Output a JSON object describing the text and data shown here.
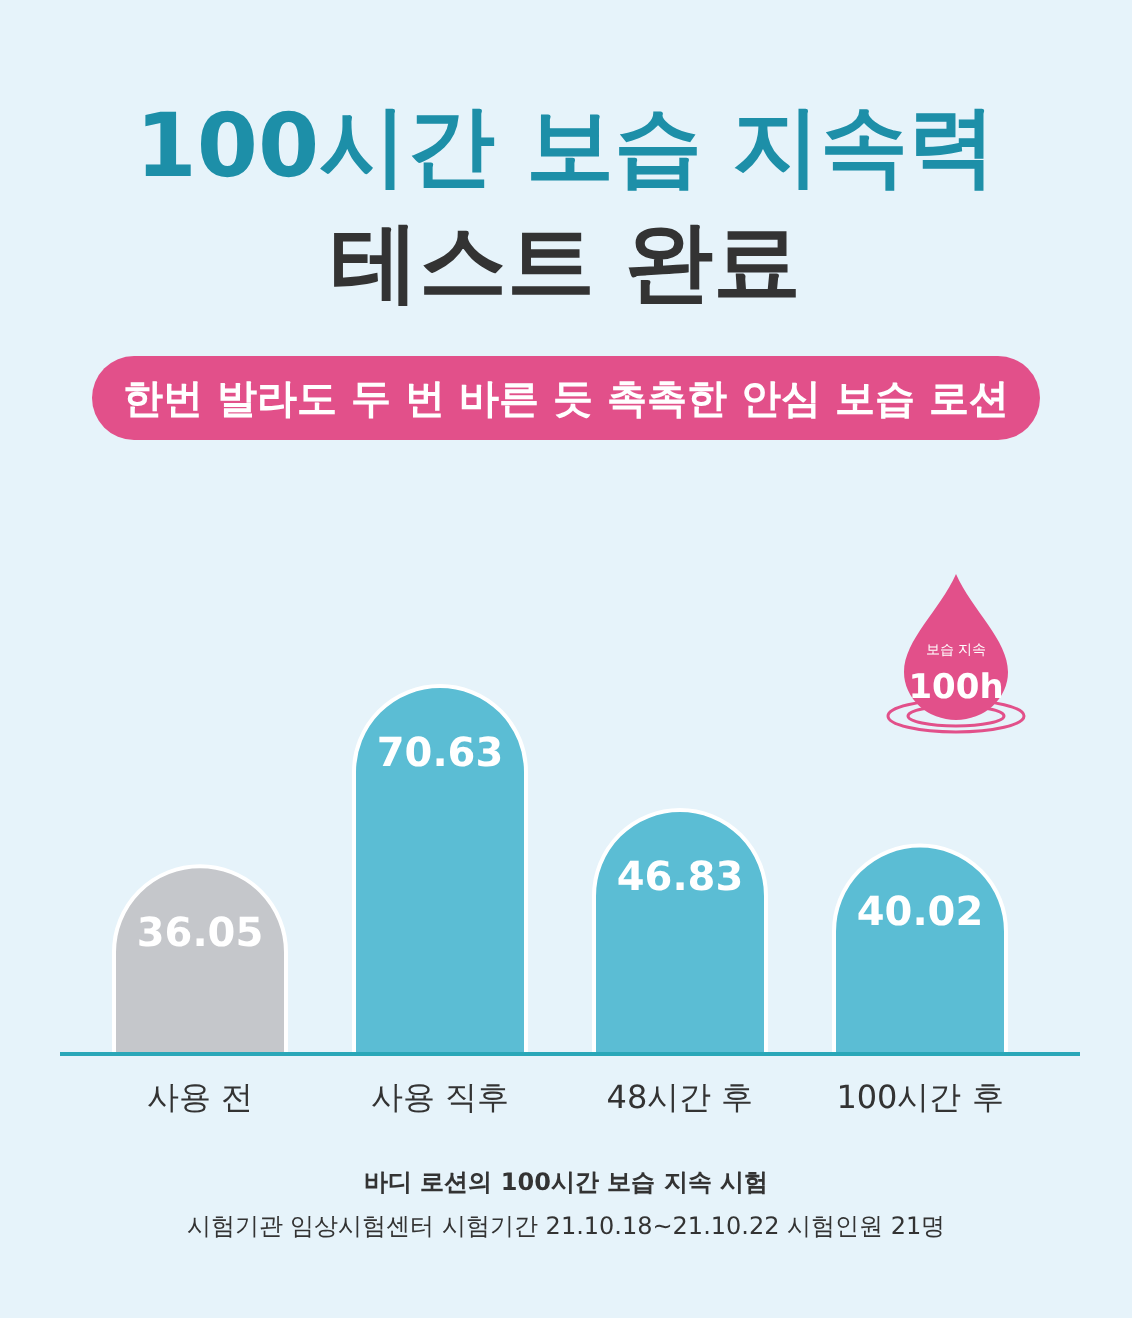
{
  "chart_data": {
    "type": "bar",
    "title": "100시간 보습 지속력\n테스트 완료",
    "subtitle": "한번 발라도 두 번 바른 듯 촉촉한 안심 보습 로션",
    "categories": [
      "사용 전",
      "사용 직후",
      "48시간 후",
      "100시간 후"
    ],
    "values": [
      36.05,
      70.63,
      46.83,
      40.02
    ],
    "colors": [
      "#c5c7cb",
      "#5bbdd4",
      "#5bbdd4",
      "#5bbdd4"
    ],
    "data_labels": true,
    "annotations": [
      "보습 지속",
      "100h",
      "바디 로션의 100시간 보습 지속 시험",
      "시험기관 임상시험센터  시험기간 21.10.18~21.10.22  시험인원 21명"
    ]
  }
}
